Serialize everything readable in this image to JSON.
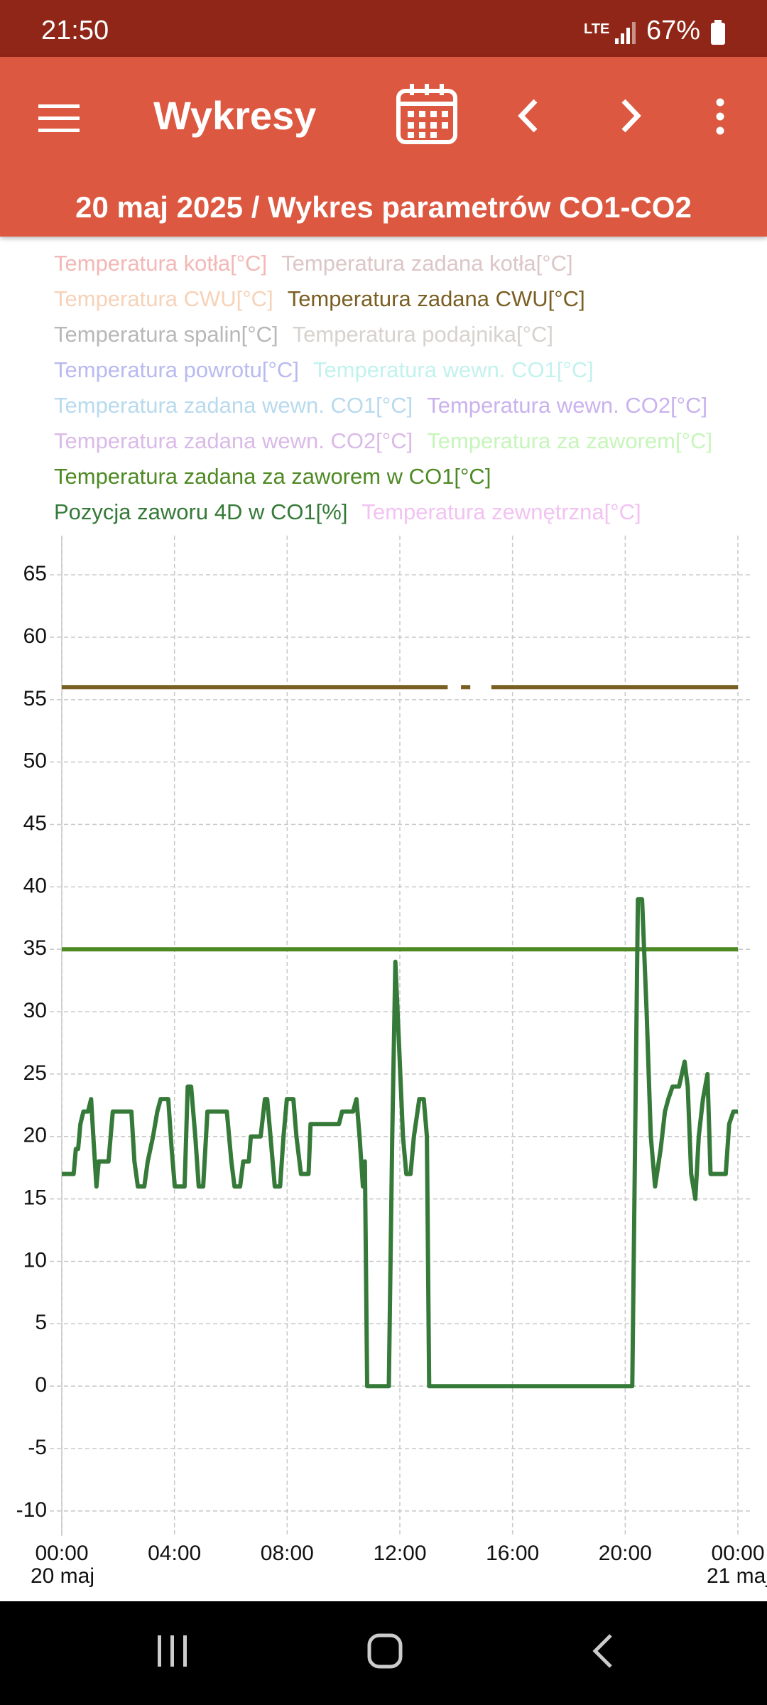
{
  "status_bar": {
    "time": "21:50",
    "network": "LTE",
    "battery": "67%"
  },
  "app_bar": {
    "title": "Wykresy"
  },
  "subtitle": "20 maj 2025 / Wykres parametrów CO1-CO2",
  "chart_data": {
    "type": "line",
    "xlim": [
      0,
      24
    ],
    "xticks": [
      {
        "value": 0,
        "label": "00:00"
      },
      {
        "value": 4,
        "label": "04:00"
      },
      {
        "value": 8,
        "label": "08:00"
      },
      {
        "value": 12,
        "label": "12:00"
      },
      {
        "value": 16,
        "label": "16:00"
      },
      {
        "value": 20,
        "label": "20:00"
      },
      {
        "value": 24,
        "label": "00:00"
      }
    ],
    "xtick_dates": [
      {
        "value": 0,
        "label": "20 maj"
      },
      {
        "value": 24,
        "label": "21 maj"
      }
    ],
    "ylim": [
      -12,
      67
    ],
    "yticks": [
      -10,
      -5,
      0,
      5,
      10,
      15,
      20,
      25,
      30,
      35,
      40,
      45,
      50,
      55,
      60,
      65
    ],
    "grid": true,
    "series": [
      {
        "name": "Temperatura kotła[°C]",
        "color": "#f2b8b6",
        "visible": false,
        "x": [],
        "values": []
      },
      {
        "name": "Temperatura zadana kotła[°C]",
        "color": "#dcc6c6",
        "visible": false,
        "x": [],
        "values": []
      },
      {
        "name": "Temperatura CWU[°C]",
        "color": "#f6d2b8",
        "visible": false,
        "x": [],
        "values": []
      },
      {
        "name": "Temperatura zadana CWU[°C]",
        "color": "#7a5f22",
        "visible": true,
        "x": [
          0,
          13.7,
          13.71,
          14.17,
          14.5,
          14.51,
          15.25,
          24
        ],
        "values": [
          56,
          56,
          null,
          56,
          56,
          null,
          56,
          56
        ]
      },
      {
        "name": "Temperatura spalin[°C]",
        "color": "#b8b8b8",
        "visible": false,
        "x": [],
        "values": []
      },
      {
        "name": "Temperatura podajnika[°C]",
        "color": "#d8d2ce",
        "visible": false,
        "x": [],
        "values": []
      },
      {
        "name": "Temperatura powrotu[°C]",
        "color": "#b8baf0",
        "visible": false,
        "x": [],
        "values": []
      },
      {
        "name": "Temperatura wewn. CO1[°C]",
        "color": "#c2f2ee",
        "visible": false,
        "x": [],
        "values": []
      },
      {
        "name": "Temperatura zadana wewn. CO1[°C]",
        "color": "#b8daee",
        "visible": false,
        "x": [],
        "values": []
      },
      {
        "name": "Temperatura wewn. CO2[°C]",
        "color": "#cab2ee",
        "visible": false,
        "x": [],
        "values": []
      },
      {
        "name": "Temperatura zadana wewn. CO2[°C]",
        "color": "#dabae8",
        "visible": false,
        "x": [],
        "values": []
      },
      {
        "name": "Temperatura za zaworem[°C]",
        "color": "#c6f6ba",
        "visible": false,
        "x": [],
        "values": []
      },
      {
        "name": "Temperatura zadana za zaworem w CO1[°C]",
        "color": "#4e8a24",
        "visible": true,
        "x": [
          0,
          24
        ],
        "values": [
          35,
          35
        ]
      },
      {
        "name": "Pozycja zaworu 4D w CO1[%]",
        "color": "#357a38",
        "visible": true,
        "x": [
          0,
          0.42,
          0.5,
          0.58,
          0.66,
          0.77,
          0.93,
          1.04,
          1.12,
          1.23,
          1.31,
          1.66,
          1.81,
          2.47,
          2.58,
          2.7,
          2.93,
          3.05,
          3.24,
          3.39,
          3.51,
          3.78,
          3.9,
          4.01,
          4.36,
          4.47,
          4.59,
          4.74,
          4.86,
          5.02,
          5.17,
          5.86,
          6.02,
          6.13,
          6.33,
          6.44,
          6.64,
          6.71,
          7.06,
          7.21,
          7.29,
          7.41,
          7.56,
          7.75,
          7.87,
          7.99,
          8.22,
          8.33,
          8.49,
          8.76,
          8.83,
          9.84,
          9.95,
          10.34,
          10.46,
          10.57,
          10.69,
          10.76,
          10.84,
          11.61,
          11.73,
          11.84,
          11.96,
          12.11,
          12.23,
          12.38,
          12.5,
          12.69,
          12.85,
          12.96,
          13.04,
          20.25,
          20.45,
          20.6,
          20.76,
          20.91,
          21.06,
          21.26,
          21.41,
          21.53,
          21.68,
          21.91,
          22.11,
          22.22,
          22.34,
          22.49,
          22.61,
          22.76,
          22.92,
          23.03,
          23.57,
          23.69,
          23.84,
          24
        ],
        "values": [
          17,
          17,
          19,
          19,
          21,
          22,
          22,
          23,
          20,
          16,
          18,
          18,
          22,
          22,
          18,
          16,
          16,
          18,
          20,
          22,
          23,
          23,
          19,
          16,
          16,
          24,
          24,
          20,
          16,
          16,
          22,
          22,
          18,
          16,
          16,
          18,
          18,
          20,
          20,
          23,
          23,
          20,
          16,
          16,
          20,
          23,
          23,
          20,
          17,
          17,
          21,
          21,
          22,
          22,
          23,
          20,
          16,
          18,
          0,
          0,
          20,
          34,
          28,
          20,
          17,
          17,
          20,
          23,
          23,
          20,
          0,
          0,
          39,
          39,
          30,
          20,
          16,
          19,
          22,
          23,
          24,
          24,
          26,
          24,
          17,
          15,
          20,
          23,
          25,
          17,
          17,
          21,
          22,
          22
        ]
      },
      {
        "name": "Temperatura zewnętrzna[°C]",
        "color": "#f2c2f2",
        "visible": false,
        "x": [],
        "values": []
      }
    ]
  }
}
